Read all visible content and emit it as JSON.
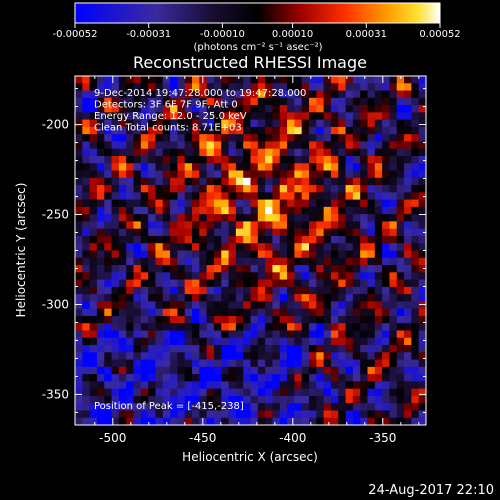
{
  "chart_data": {
    "type": "heatmap",
    "title": "Reconstructed RHESSI Image",
    "xlabel": "Heliocentric X (arcsec)",
    "ylabel": "Heliocentric Y (arcsec)",
    "xlim": [
      -521,
      -326
    ],
    "ylim": [
      -367,
      -173
    ],
    "xticks": [
      -500,
      -450,
      -400,
      -350
    ],
    "yticks": [
      -350,
      -300,
      -250,
      -200
    ],
    "colorbar": {
      "label_prefix": "(photons cm",
      "label_full": "(photons cm⁻² s⁻¹ asec⁻²)",
      "ticks": [
        "-0.00052",
        "-0.00031",
        "-0.00010",
        "0.00010",
        "0.00031",
        "0.00052"
      ],
      "range": [
        -0.00052,
        0.00052
      ],
      "colormap": "blue-black-red-yellow-white"
    },
    "annotations": [
      "9-Dec-2014 19:47:28.000 to 19:47:28.000",
      "Detectors: 3F 6F 7F 9F, Att 0",
      "Energy Range: 12.0 - 25.0 keV",
      "Clean    Total counts: 8.71E+03"
    ],
    "peak_label": "Position of Peak = [-415,-238]",
    "peak": [
      -415,
      -238
    ],
    "grid": false
  },
  "timestamp": "24-Aug-2017 22:10"
}
